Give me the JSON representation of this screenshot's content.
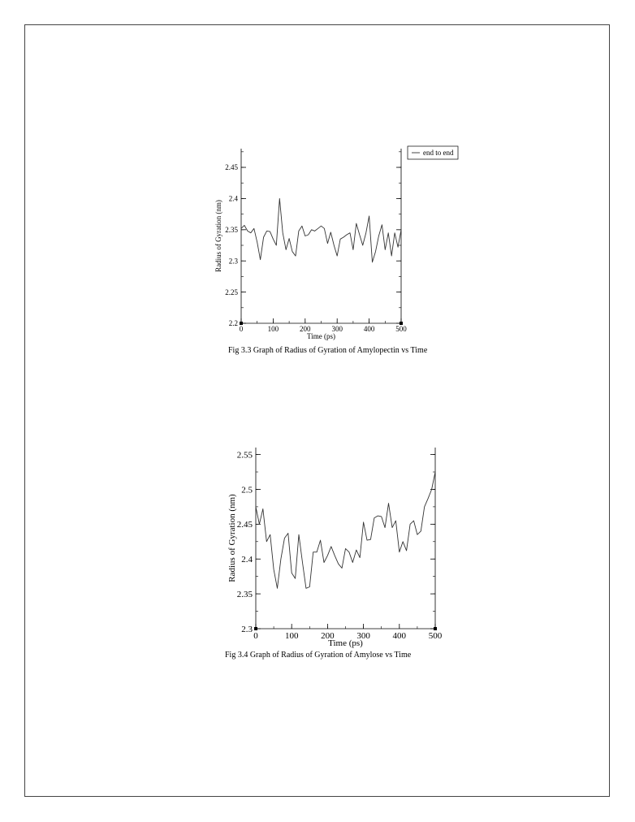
{
  "chart_data": [
    {
      "type": "line",
      "xlabel": "Time (ps)",
      "ylabel": "Radius of Gyration  (nm)",
      "xlim": [
        0,
        500
      ],
      "ylim": [
        2.2,
        2.48
      ],
      "xticks": [
        0,
        100,
        200,
        300,
        400,
        500
      ],
      "xtick_labels": [
        "0",
        "100",
        "200",
        "300",
        "400",
        "500"
      ],
      "yticks": [
        2.2,
        2.25,
        2.3,
        2.35,
        2.4,
        2.45
      ],
      "ytick_labels": [
        "2.2",
        "2.25",
        "2.3",
        "2.35",
        "2.4",
        "2.45"
      ],
      "grid": false,
      "legend_position": "top-right-outside",
      "series": [
        {
          "name": "end to end",
          "x": [
            0,
            10,
            20,
            30,
            40,
            50,
            60,
            70,
            80,
            90,
            100,
            110,
            120,
            130,
            140,
            150,
            160,
            170,
            180,
            190,
            200,
            210,
            220,
            230,
            240,
            250,
            260,
            270,
            280,
            290,
            300,
            310,
            320,
            330,
            340,
            350,
            360,
            370,
            380,
            390,
            400,
            410,
            420,
            430,
            440,
            450,
            460,
            470,
            480,
            490,
            500
          ],
          "values": [
            2.352,
            2.357,
            2.348,
            2.345,
            2.352,
            2.33,
            2.302,
            2.338,
            2.348,
            2.347,
            2.335,
            2.325,
            2.4,
            2.345,
            2.318,
            2.336,
            2.315,
            2.308,
            2.348,
            2.356,
            2.34,
            2.342,
            2.35,
            2.348,
            2.352,
            2.356,
            2.352,
            2.328,
            2.346,
            2.325,
            2.308,
            2.335,
            2.338,
            2.342,
            2.345,
            2.318,
            2.36,
            2.342,
            2.325,
            2.345,
            2.372,
            2.298,
            2.315,
            2.34,
            2.358,
            2.318,
            2.345,
            2.308,
            2.345,
            2.322,
            2.35
          ]
        }
      ]
    },
    {
      "type": "line",
      "xlabel": "Time (ps)",
      "ylabel": "Radius of Gyration  (nm)",
      "xlim": [
        0,
        500
      ],
      "ylim": [
        2.3,
        2.56
      ],
      "xticks": [
        0,
        100,
        200,
        300,
        400,
        500
      ],
      "xtick_labels": [
        "0",
        "100",
        "200",
        "300",
        "400",
        "500"
      ],
      "yticks": [
        2.3,
        2.35,
        2.4,
        2.45,
        2.5,
        2.55
      ],
      "ytick_labels": [
        "2.3",
        "2.35",
        "2.4",
        "2.45",
        "2.5",
        "2.55"
      ],
      "grid": false,
      "series": [
        {
          "x": [
            0,
            10,
            20,
            30,
            40,
            50,
            60,
            70,
            80,
            90,
            100,
            110,
            120,
            130,
            140,
            150,
            160,
            170,
            180,
            190,
            200,
            210,
            220,
            230,
            240,
            250,
            260,
            270,
            280,
            290,
            300,
            310,
            320,
            330,
            340,
            350,
            360,
            370,
            380,
            390,
            400,
            410,
            420,
            430,
            440,
            450,
            460,
            470,
            480,
            490,
            500
          ],
          "values": [
            2.475,
            2.45,
            2.472,
            2.425,
            2.435,
            2.385,
            2.358,
            2.4,
            2.43,
            2.437,
            2.38,
            2.372,
            2.435,
            2.395,
            2.358,
            2.36,
            2.41,
            2.41,
            2.427,
            2.395,
            2.405,
            2.418,
            2.405,
            2.393,
            2.387,
            2.415,
            2.41,
            2.395,
            2.413,
            2.402,
            2.453,
            2.427,
            2.428,
            2.459,
            2.462,
            2.461,
            2.445,
            2.48,
            2.445,
            2.455,
            2.41,
            2.425,
            2.412,
            2.45,
            2.455,
            2.435,
            2.44,
            2.475,
            2.487,
            2.5,
            2.525
          ]
        }
      ]
    }
  ],
  "captions": {
    "fig33": "Fig 3.3    Graph of Radius of Gyration of Amylopectin vs Time",
    "fig34": "Fig 3.4 Graph of Radius of Gyration of Amylose vs Time"
  },
  "colors": {
    "line": "#333333",
    "axis": "#000000"
  }
}
